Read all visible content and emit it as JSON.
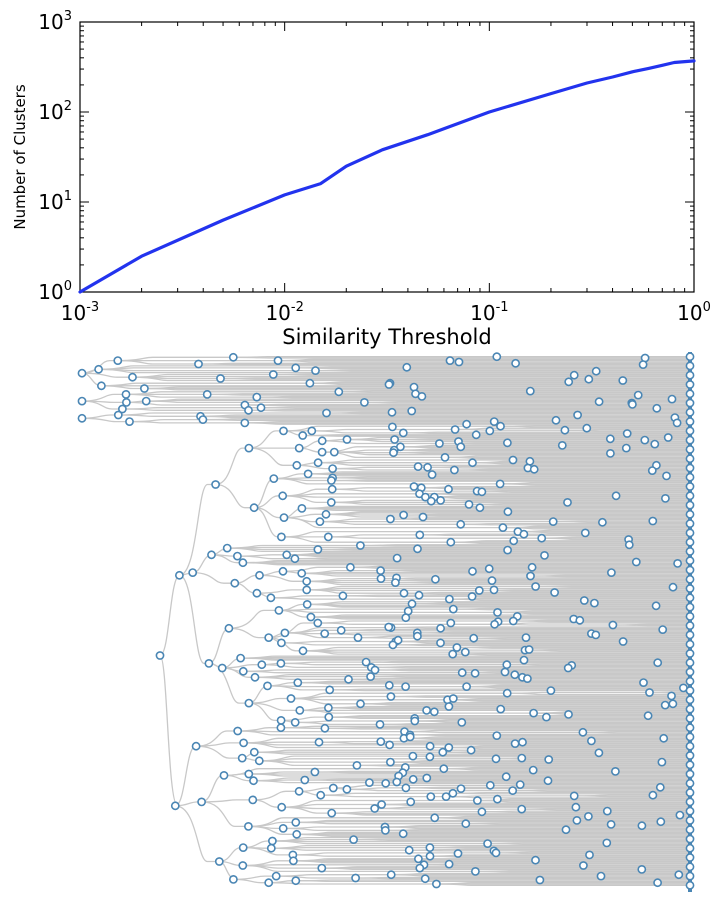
{
  "chart_data": [
    {
      "type": "line",
      "xscale": "log",
      "yscale": "log",
      "xlabel": "Similarity Threshold",
      "ylabel": "Number of Clusters",
      "xlim": [
        0.001,
        1
      ],
      "ylim": [
        1,
        1000
      ],
      "xticks": [
        {
          "base": "10",
          "exp": "-3"
        },
        {
          "base": "10",
          "exp": "-2"
        },
        {
          "base": "10",
          "exp": "-1"
        },
        {
          "base": "10",
          "exp": "0"
        }
      ],
      "yticks": [
        {
          "base": "10",
          "exp": "0"
        },
        {
          "base": "10",
          "exp": "1"
        },
        {
          "base": "10",
          "exp": "2"
        },
        {
          "base": "10",
          "exp": "3"
        }
      ],
      "grid": false,
      "color": "#2233ee",
      "series": [
        {
          "x": [
            0.001,
            0.002,
            0.005,
            0.01,
            0.015,
            0.02,
            0.03,
            0.05,
            0.1,
            0.2,
            0.3,
            0.4,
            0.5,
            0.6,
            0.7,
            0.8,
            1.0
          ],
          "y": [
            1,
            2.5,
            6.3,
            12,
            16,
            25,
            38,
            56,
            100,
            160,
            210,
            245,
            280,
            305,
            330,
            355,
            370
          ]
        }
      ]
    },
    {
      "type": "tree",
      "description_free": true,
      "edge_color": "#c8c8c8",
      "node_color": "#4a86b4",
      "leaf_count": 400
    }
  ]
}
